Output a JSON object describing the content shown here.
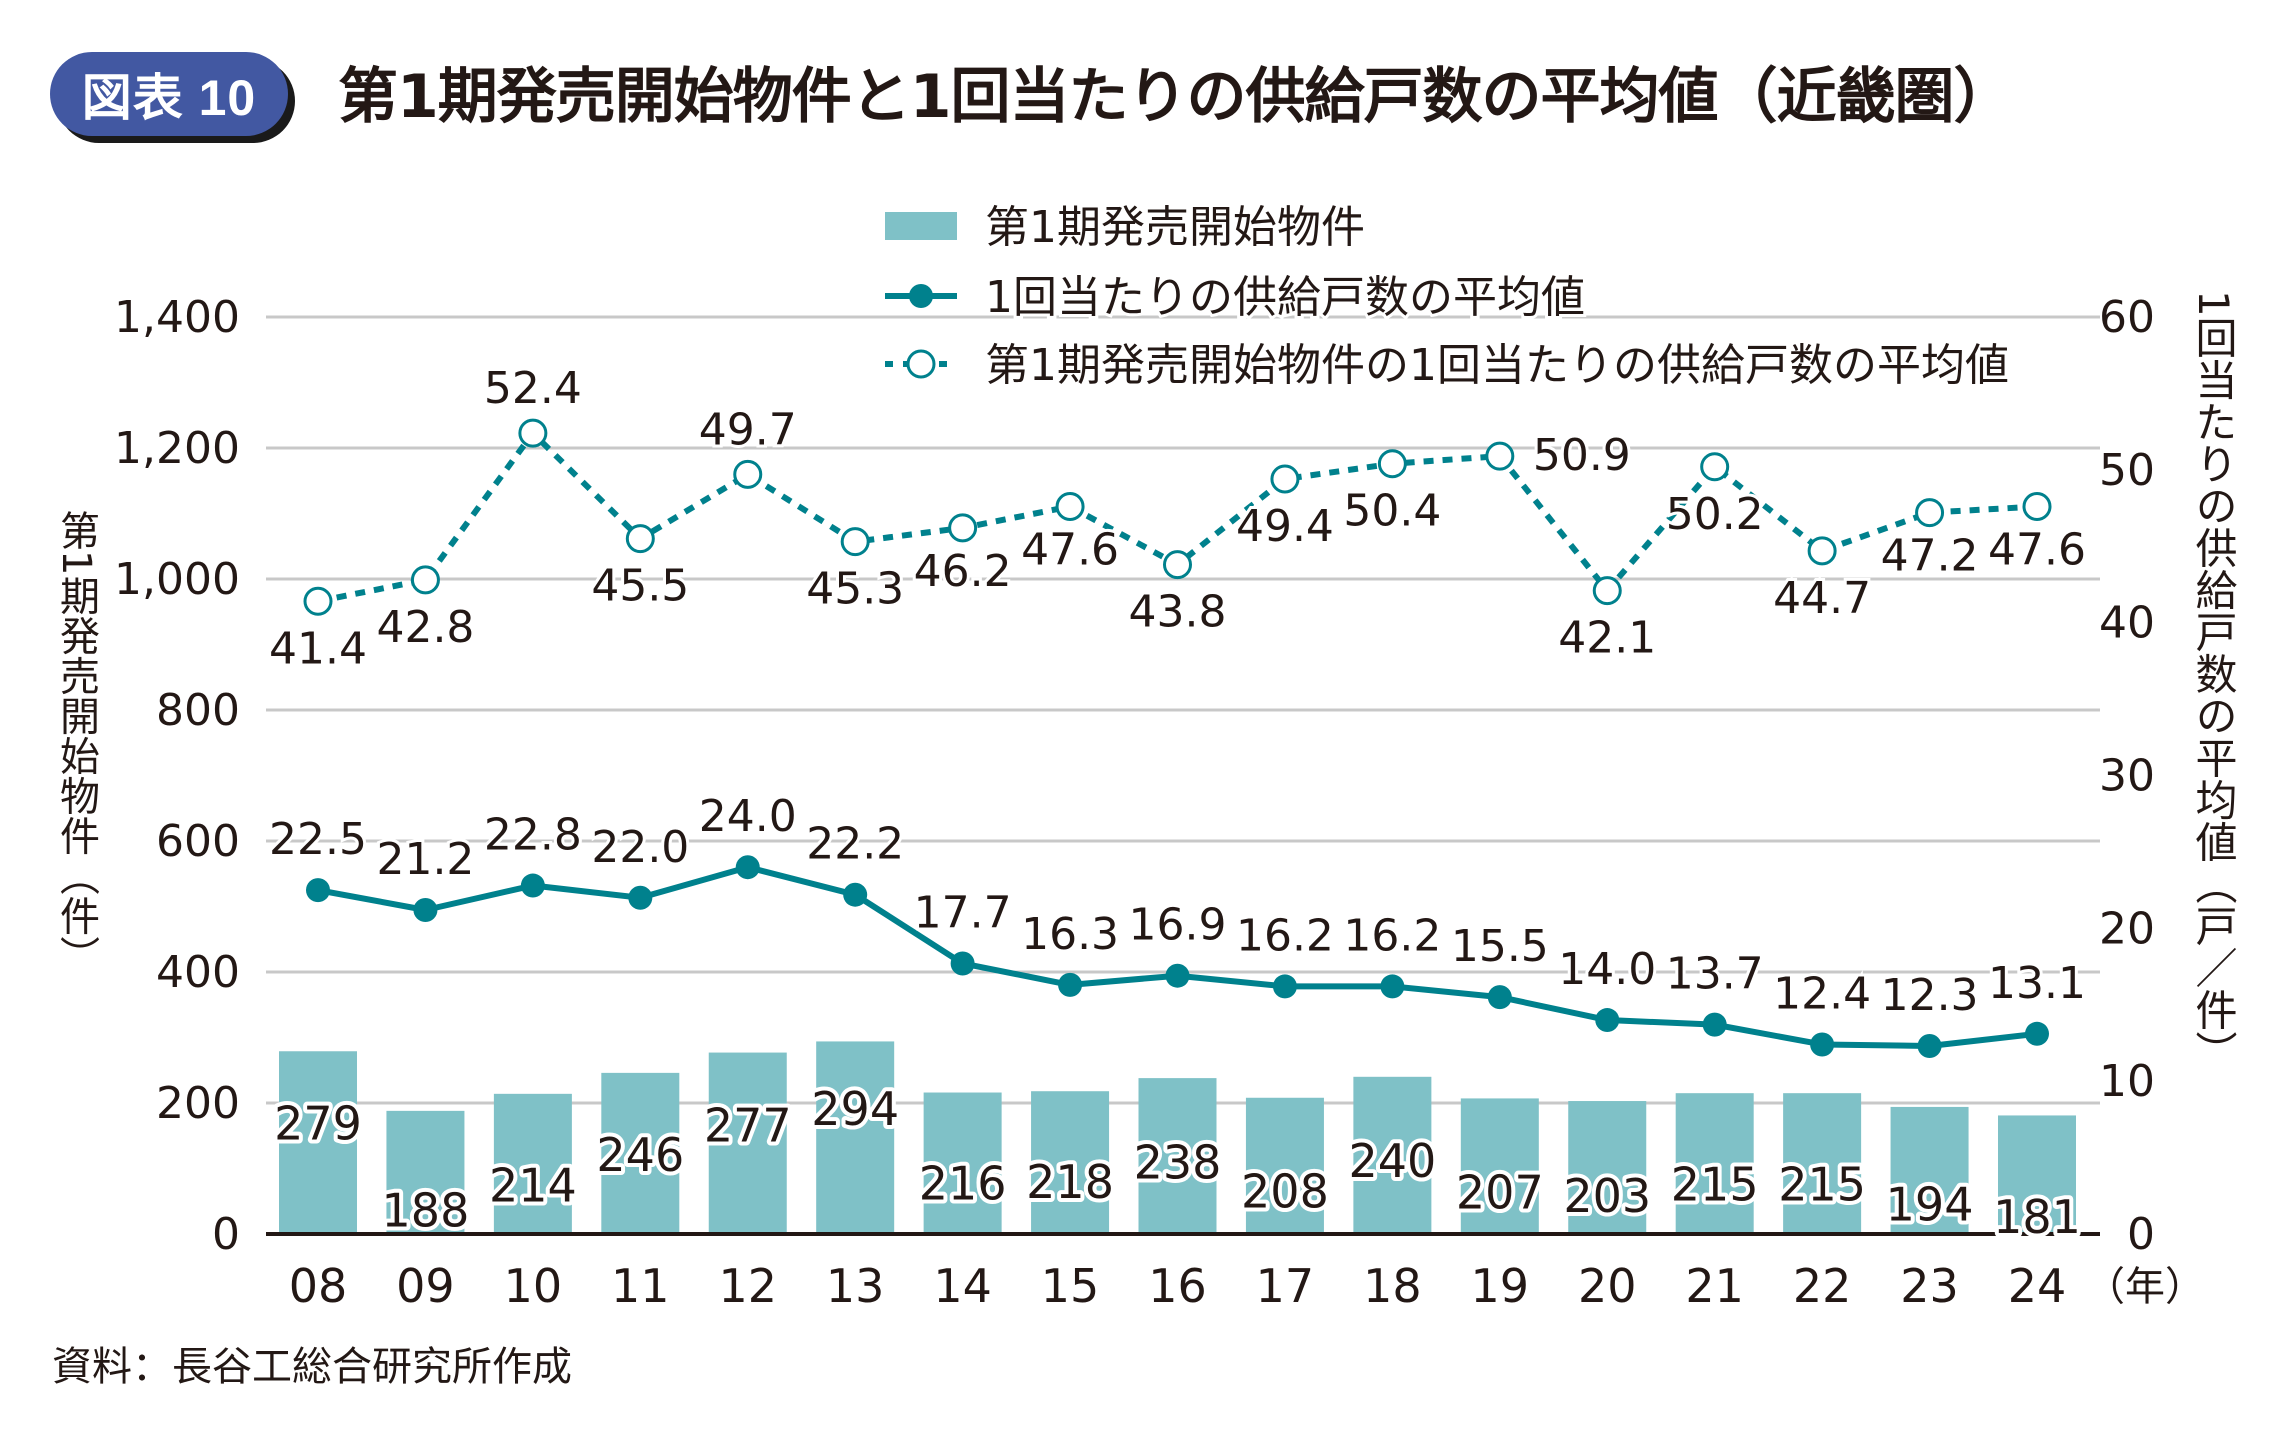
{
  "header": {
    "badge": "図表 10",
    "title": "第1期発売開始物件と1回当たりの供給戸数の平均値（近畿圏）"
  },
  "source": "資料：長谷工総合研究所作成",
  "chart_data": {
    "type": "bar+line",
    "title": "第1期発売開始物件と1回当たりの供給戸数の平均値（近畿圏）",
    "categories": [
      "08",
      "09",
      "10",
      "11",
      "12",
      "13",
      "14",
      "15",
      "16",
      "17",
      "18",
      "19",
      "20",
      "21",
      "22",
      "23",
      "24"
    ],
    "x_unit": "（年）",
    "ylabel_left": "第1期発売開始物件（件）",
    "ylabel_right": "1回当たりの供給戸数の平均値（戸／件）",
    "ylim_left": [
      0,
      1400
    ],
    "yticks_left": [
      "0",
      "200",
      "400",
      "600",
      "800",
      "1,000",
      "1,200",
      "1,400"
    ],
    "ylim_right": [
      0,
      60
    ],
    "yticks_right": [
      "0",
      "10",
      "20",
      "30",
      "40",
      "50",
      "60"
    ],
    "grid": true,
    "legend_position": "top-right",
    "colors": {
      "bar": "#7fc1c7",
      "line": "#00818d",
      "grid": "#c8c8c8"
    },
    "series": [
      {
        "name": "第1期発売開始物件",
        "type": "bar",
        "axis": "left",
        "values": [
          279,
          188,
          214,
          246,
          277,
          294,
          216,
          218,
          238,
          208,
          240,
          207,
          203,
          215,
          215,
          194,
          181
        ]
      },
      {
        "name": "1回当たりの供給戸数の平均値",
        "type": "line-solid",
        "axis": "right",
        "values": [
          22.5,
          21.2,
          22.8,
          22.0,
          24.0,
          22.2,
          17.7,
          16.3,
          16.9,
          16.2,
          16.2,
          15.5,
          14.0,
          13.7,
          12.4,
          12.3,
          13.1
        ]
      },
      {
        "name": "第1期発売開始物件の1回当たりの供給戸数の平均値",
        "type": "line-dotted",
        "axis": "right",
        "values": [
          41.4,
          42.8,
          52.4,
          45.5,
          49.7,
          45.3,
          46.2,
          47.6,
          43.8,
          49.4,
          50.4,
          50.9,
          42.1,
          50.2,
          44.7,
          47.2,
          47.6
        ]
      }
    ]
  }
}
